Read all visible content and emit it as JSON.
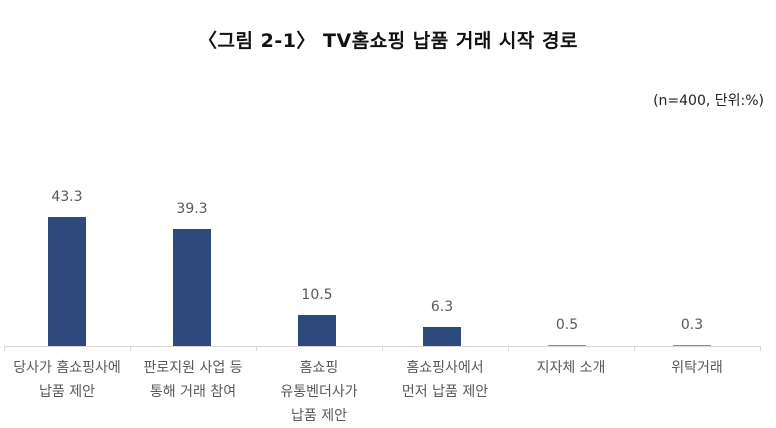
{
  "title": "〈그림 2-1〉 TV홈쇼핑 납품 거래 시작 경로",
  "unit_note": "(n=400, 단위:%)",
  "colors": {
    "bar": "#2e4a7d",
    "axis": "#d9d9d9",
    "label": "#595959"
  },
  "chart_data": {
    "type": "bar",
    "title": "〈그림 2-1〉 TV홈쇼핑 납품 거래 시작 경로",
    "subtitle": "(n=400, 단위:%)",
    "xlabel": "",
    "ylabel": "",
    "categories": [
      "당사가 홈쇼핑사에 납품 제안",
      "판로지원 사업 등 통해 거래 참여",
      "홈쇼핑 유통벤더사가 납품 제안",
      "홈쇼핑사에서 먼저 납품 제안",
      "지자체 소개",
      "위탁거래"
    ],
    "values": [
      43.3,
      39.3,
      10.5,
      6.3,
      0.5,
      0.3
    ],
    "data_labels": true,
    "grid": false,
    "legend": null,
    "ylim": [
      0,
      45
    ]
  },
  "bars": [
    {
      "value": "43.3",
      "label": "당사가 홈쇼핑사에\n납품 제안"
    },
    {
      "value": "39.3",
      "label": "판로지원 사업 등\n통해 거래 참여"
    },
    {
      "value": "10.5",
      "label": "홈쇼핑\n유통벤더사가\n납품 제안"
    },
    {
      "value": "6.3",
      "label": "홈쇼핑사에서\n먼저 납품 제안"
    },
    {
      "value": "0.5",
      "label": "지자체 소개"
    },
    {
      "value": "0.3",
      "label": "위탁거래"
    }
  ]
}
